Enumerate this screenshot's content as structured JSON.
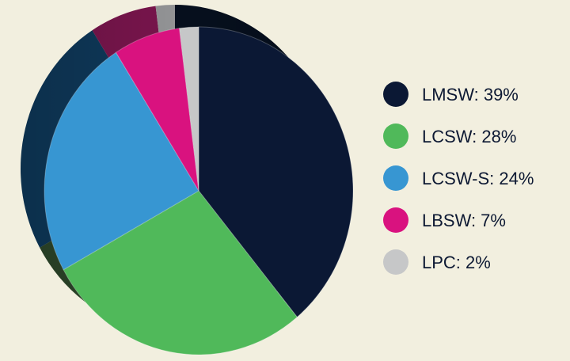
{
  "chart_data": {
    "type": "pie",
    "title": "",
    "series": [
      {
        "name": "LMSW",
        "value": 39,
        "label": "LMSW: 39%",
        "color": "#0b1834",
        "side_color": "#06101f"
      },
      {
        "name": "LCSW",
        "value": 28,
        "label": "LCSW: 28%",
        "color": "#50b95a",
        "side_color": "#2f4a2c"
      },
      {
        "name": "LCSW-S",
        "value": 24,
        "label": "LCSW-S: 24%",
        "color": "#3796d2",
        "side_color": "#0f3b5e"
      },
      {
        "name": "LBSW",
        "value": 7,
        "label": "LBSW: 7%",
        "color": "#d9127f",
        "side_color": "#7e1650"
      },
      {
        "name": "LPC",
        "value": 2,
        "label": "LPC: 2%",
        "color": "#c6c7c8",
        "side_color": "#9a9b9d"
      }
    ],
    "legend_position": "right",
    "style": "3d-tilted"
  }
}
